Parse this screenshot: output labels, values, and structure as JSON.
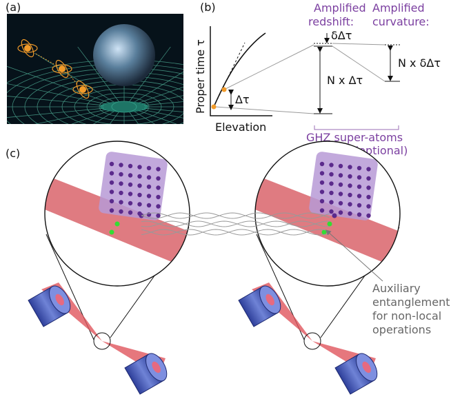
{
  "panels": {
    "a": {
      "label": "(a)"
    },
    "b": {
      "label": "(b)",
      "y_axis_label": "Proper time τ",
      "x_axis_label": "Elevation",
      "delta_label": "Δτ",
      "redshift_title": [
        "Amplified",
        "redshift:"
      ],
      "curvature_title": [
        "Amplified",
        "curvature:"
      ],
      "small_delta": "δΔτ",
      "n_delta": "N x Δτ",
      "n_small_delta": "N x δΔτ",
      "ghz_label": [
        "GHZ super-atoms",
        "(optional)"
      ]
    },
    "c": {
      "label": "(c)",
      "annotation": [
        "Auxiliary",
        "entanglement",
        "for non-local",
        "operations"
      ]
    }
  }
}
